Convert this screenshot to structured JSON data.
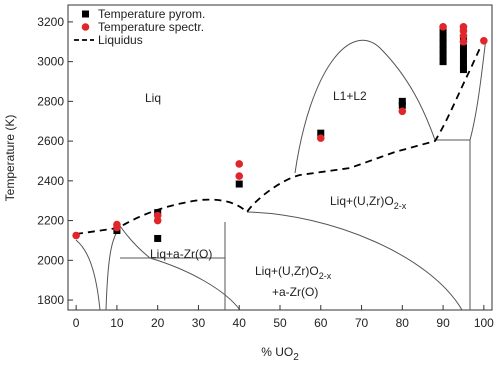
{
  "chart_data": {
    "type": "scatter",
    "x_label": {
      "text": "% UO",
      "sub": "2"
    },
    "y_label": "Temperature (K)",
    "xlim": [
      -2,
      102
    ],
    "ylim": [
      1750,
      3285
    ],
    "xticks": [
      0,
      10,
      20,
      30,
      40,
      50,
      60,
      70,
      80,
      90,
      100
    ],
    "yticks": [
      1800,
      2000,
      2200,
      2400,
      2600,
      2800,
      3000,
      3200
    ],
    "legend": "top-left",
    "series": [
      {
        "name": "Temperature pyrom.",
        "color": "#000000",
        "marker": "square",
        "x": [
          10,
          20,
          20,
          40,
          60,
          80,
          80,
          90,
          90,
          90,
          90,
          90,
          90,
          95,
          95,
          95,
          95,
          95,
          95
        ],
        "values": [
          2150,
          2240,
          2110,
          2384,
          2640,
          2800,
          2780,
          3150,
          3120,
          3090,
          3060,
          3030,
          3000,
          3110,
          3070,
          3040,
          3010,
          2980,
          2960
        ]
      },
      {
        "name": "Temperature spectr.",
        "color": "#e0262b",
        "marker": "circle",
        "x": [
          0,
          10,
          10,
          20,
          20,
          40,
          40,
          60,
          80,
          90,
          95,
          95,
          95,
          95,
          100
        ],
        "values": [
          2125,
          2180,
          2165,
          2225,
          2200,
          2485,
          2424,
          2615,
          2750,
          3175,
          3175,
          3155,
          3130,
          3100,
          3105
        ]
      }
    ],
    "lines": [
      {
        "name": "Liquidus",
        "style": "dashed",
        "color": "#000000"
      }
    ],
    "annotations": [
      {
        "text": "Liq"
      },
      {
        "text": "L1+L2"
      },
      {
        "text": "Liq+(U,Zr)O",
        "sub": "2-x"
      },
      {
        "text": "Liq+a-Zr(O)"
      },
      {
        "text": "Liq+(U,Zr)O",
        "sub": "2-x"
      },
      {
        "text": "+a-Zr(O)"
      }
    ]
  }
}
